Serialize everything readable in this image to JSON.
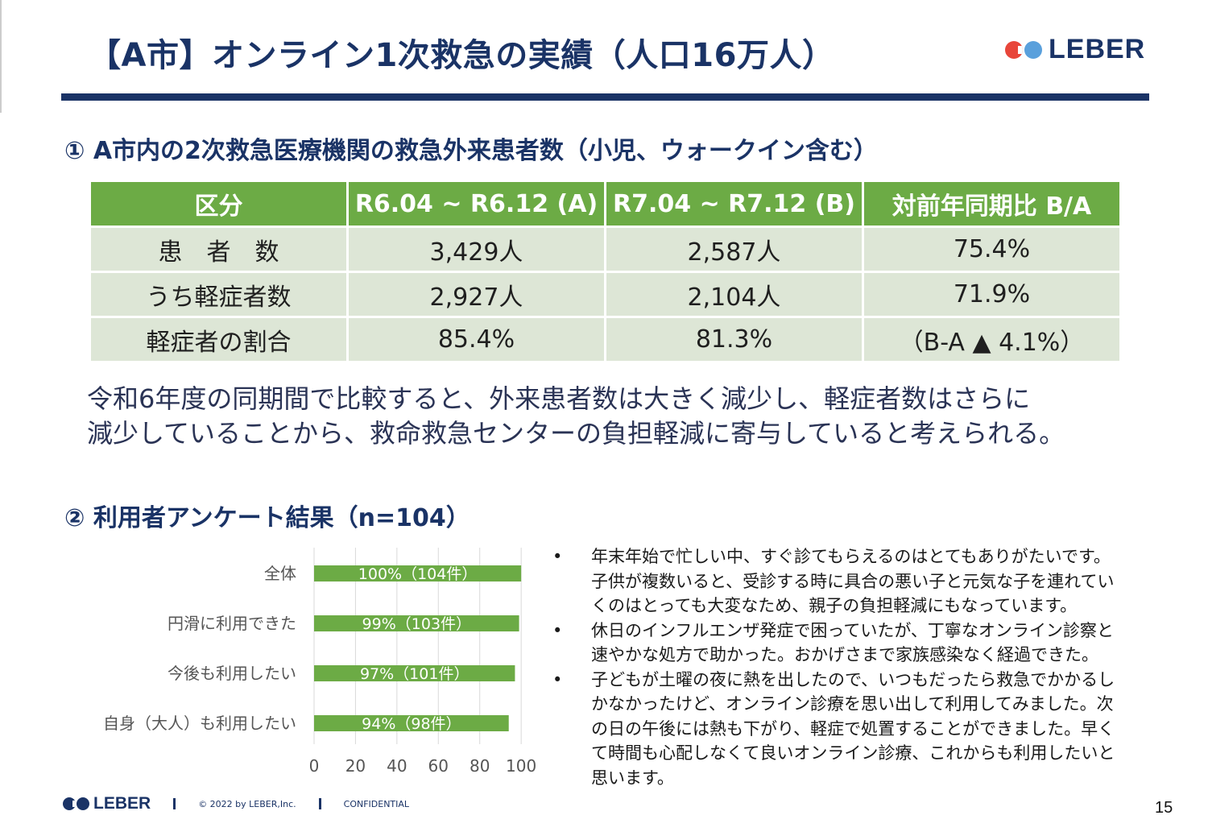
{
  "header": {
    "title": "【A市】オンライン1次救急の実績（人口16万人）",
    "logo_text": "LEBER"
  },
  "section1": {
    "heading": "① A市内の2次救急医療機関の救急外来患者数（小児、ウォークイン含む）",
    "table": {
      "headers": [
        "区分",
        "R6.04 ~ R6.12 (A)",
        "R7.04 ~ R7.12 (B)",
        "対前年同期比 B/A"
      ],
      "rows": [
        [
          "患　者　数",
          "3,429人",
          "2,587人",
          "75.4%"
        ],
        [
          "うち軽症者数",
          "2,927人",
          "2,104人",
          "71.9%"
        ],
        [
          "軽症者の割合",
          "85.4%",
          "81.3%",
          "（B-A ▲ 4.1%）"
        ]
      ]
    },
    "summary_lines": [
      "令和6年度の同期間で比較すると、外来患者数は大きく減少し、軽症者数はさらに",
      "減少していることから、救命救急センターの負担軽減に寄与していると考えられる。"
    ]
  },
  "section2": {
    "heading": "② 利用者アンケート結果（n=104）"
  },
  "chart_data": {
    "type": "bar",
    "orientation": "horizontal",
    "categories": [
      "全体",
      "円滑に利用できた",
      "今後も利用したい",
      "自身（大人）も利用したい"
    ],
    "values": [
      100,
      99,
      97,
      94
    ],
    "data_labels": [
      "100%（104件）",
      "99%（103件）",
      "97%（101件）",
      "94%（98件）"
    ],
    "x_ticks": [
      0,
      20,
      40,
      60,
      80,
      100
    ],
    "xlim": [
      0,
      105
    ],
    "grid": true,
    "bar_color": "#6cab45"
  },
  "comments": [
    {
      "bullet": "•",
      "lines": [
        "年末年始で忙しい中、すぐ診てもらえるのはとてもありがたいです。",
        "子供が複数いると、受診する時に具合の悪い子と元気な子を連れてい",
        "くのはとっても大変なため、親子の負担軽減にもなっています。"
      ]
    },
    {
      "bullet": "•",
      "lines": [
        "休日のインフルエンザ発症で困っていたが、丁寧なオンライン診察と",
        "速やかな処方で助かった。おかげさまで家族感染なく経過できた。"
      ]
    },
    {
      "bullet": "•",
      "lines": [
        "子どもが土曜の夜に熱を出したので、いつもだったら救急でかかるし",
        "かなかったけど、オンライン診療を思い出して利用してみました。次",
        "の日の午後には熱も下がり、軽症で処置することができました。早く",
        "て時間も心配しなくて良いオンライン診療、これからも利用したいと",
        "思います。"
      ]
    }
  ],
  "footer": {
    "logo_text": "LEBER",
    "copyright": "© 2022 by LEBER,Inc.",
    "confidential": "CONFIDENTIAL",
    "page_number": "15"
  },
  "colors": {
    "navy": "#1a3366",
    "green": "#6cab45",
    "row_bg": "#dde6d6",
    "logo_red": "#e8463a",
    "logo_blue": "#5aa0dc"
  }
}
